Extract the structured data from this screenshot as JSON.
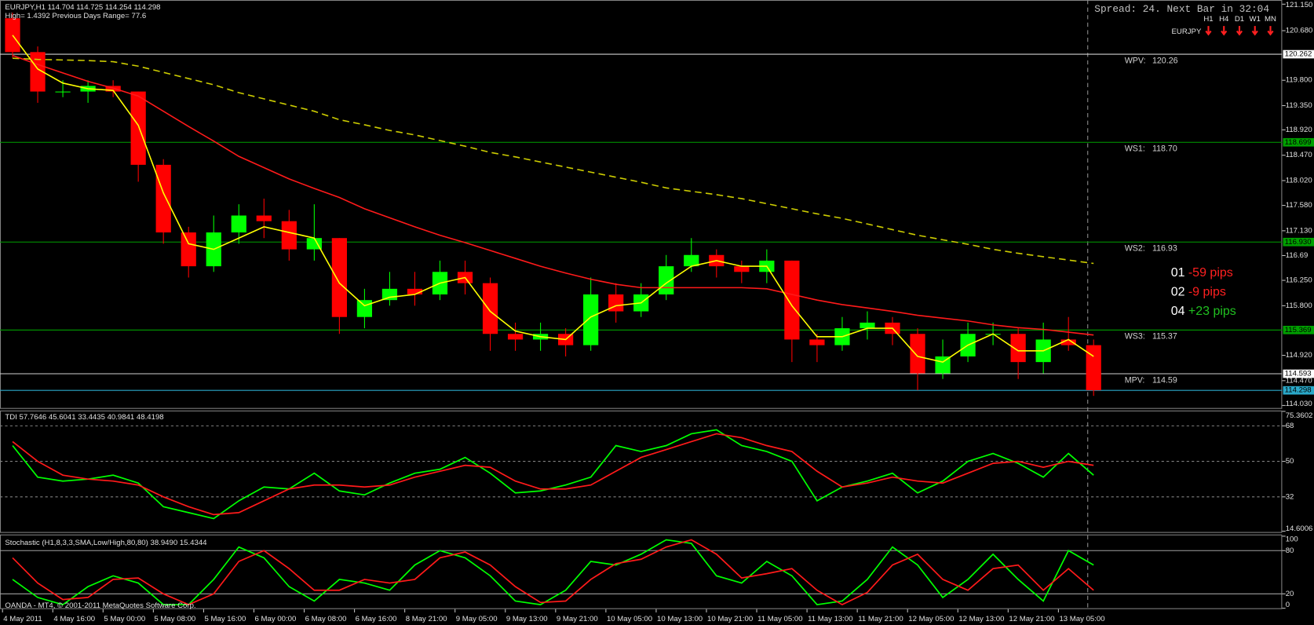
{
  "header": {
    "symbol_line": "EURJPY,H1  114.704 114.725 114.254 114.298",
    "info_line": "High= 1.4392   Previous Days Range= 77.6",
    "spread": "Spread: 24. Next Bar in 32:04",
    "timeframes": [
      "H1",
      "H4",
      "D1",
      "W1",
      "MN"
    ],
    "pair": "EURJPY"
  },
  "main": {
    "ylim": [
      113.985,
      121.224
    ],
    "yticks": [
      {
        "value": 121.15,
        "label": "121.150"
      },
      {
        "value": 120.68,
        "label": "120.680"
      },
      {
        "value": 119.8,
        "label": "119.800"
      },
      {
        "value": 119.35,
        "label": "119.350"
      },
      {
        "value": 118.92,
        "label": "118.920"
      },
      {
        "value": 118.47,
        "label": "118.470"
      },
      {
        "value": 118.02,
        "label": "118.020"
      },
      {
        "value": 117.58,
        "label": "117.580"
      },
      {
        "value": 117.13,
        "label": "117.130"
      },
      116.69,
      {
        "value": 116.25,
        "label": "116.250"
      },
      {
        "value": 115.8,
        "label": "115.800"
      },
      {
        "value": 114.92,
        "label": "114.920"
      },
      {
        "value": 114.47,
        "label": "114.470"
      },
      {
        "value": 114.03,
        "label": "114.030"
      }
    ],
    "markers": [
      {
        "value": 120.262,
        "color": "#d0d0d0"
      },
      {
        "value": 118.699,
        "color": "#00a000"
      },
      {
        "value": 116.93,
        "label": "116.930",
        "color": "#00a000"
      },
      {
        "value": 115.369,
        "color": "#00a000"
      },
      {
        "value": 114.593,
        "color": "#d0d0d0"
      },
      {
        "value": 114.298,
        "color": "#2aa8c8"
      }
    ],
    "pivots": [
      {
        "name": "WPV:",
        "value": 120.26
      },
      {
        "name": "WS1:",
        "value": {
          "value": 118.7,
          "label": "118.70"
        }
      },
      {
        "name": "WS2:",
        "value": 116.93
      },
      {
        "name": "WS3:",
        "value": 115.37
      },
      {
        "name": "MPV:",
        "value": 114.59
      }
    ],
    "up_color": "#00ff00",
    "down_color": "#ff0000",
    "candles": [
      [
        120.9,
        121.0,
        120.2,
        120.3
      ],
      [
        120.3,
        120.4,
        119.4,
        119.6
      ],
      [
        119.6,
        119.8,
        119.5,
        119.6
      ],
      [
        119.6,
        119.8,
        119.4,
        119.7
      ],
      [
        119.7,
        119.8,
        119.5,
        119.6
      ],
      [
        119.6,
        119.6,
        118.0,
        118.3
      ],
      [
        118.3,
        118.4,
        116.9,
        117.1
      ],
      [
        117.1,
        117.2,
        116.3,
        116.5
      ],
      [
        116.5,
        117.4,
        116.4,
        117.1
      ],
      [
        117.1,
        117.6,
        116.9,
        117.4
      ],
      [
        117.4,
        117.7,
        117.0,
        117.3
      ],
      [
        117.3,
        117.5,
        116.6,
        116.8
      ],
      [
        116.8,
        117.6,
        116.6,
        117.0
      ],
      [
        117.0,
        117.0,
        115.3,
        115.6
      ],
      [
        115.6,
        116.1,
        115.4,
        115.9
      ],
      [
        115.9,
        116.4,
        115.8,
        116.1
      ],
      [
        116.1,
        116.4,
        115.8,
        116.0
      ],
      [
        116.0,
        116.6,
        115.9,
        116.4
      ],
      [
        116.4,
        116.6,
        116.0,
        116.2
      ],
      [
        116.2,
        116.3,
        115.0,
        115.3
      ],
      [
        115.3,
        115.5,
        115.0,
        115.2
      ],
      [
        115.2,
        115.5,
        115.0,
        115.3
      ],
      [
        115.3,
        115.4,
        114.9,
        115.1
      ],
      [
        115.1,
        116.3,
        115.0,
        116.0
      ],
      [
        116.0,
        116.2,
        115.5,
        115.7
      ],
      [
        115.7,
        116.2,
        115.6,
        116.0
      ],
      [
        116.0,
        116.7,
        115.9,
        116.5
      ],
      [
        116.5,
        117.0,
        116.4,
        116.7
      ],
      [
        116.7,
        116.8,
        116.3,
        116.5
      ],
      [
        116.5,
        116.6,
        116.2,
        116.4
      ],
      [
        116.4,
        116.8,
        116.2,
        116.6
      ],
      [
        116.6,
        116.6,
        114.8,
        115.2
      ],
      [
        115.2,
        115.3,
        114.8,
        115.1
      ],
      [
        115.1,
        115.6,
        115.0,
        115.4
      ],
      [
        115.4,
        115.7,
        115.2,
        115.5
      ],
      [
        115.5,
        115.6,
        115.1,
        115.3
      ],
      [
        115.3,
        115.4,
        114.3,
        114.6
      ],
      [
        114.6,
        115.2,
        114.5,
        114.9
      ],
      [
        114.9,
        115.5,
        114.8,
        115.3
      ],
      [
        115.3,
        115.5,
        115.1,
        115.3
      ],
      [
        115.3,
        115.4,
        114.5,
        114.8
      ],
      [
        114.8,
        115.5,
        114.6,
        115.2
      ],
      [
        115.2,
        115.6,
        115.0,
        115.1
      ],
      [
        115.1,
        115.2,
        114.2,
        114.3
      ]
    ],
    "series": [
      {
        "color": "#cccc00",
        "dashed": true,
        "values": [
          120.19,
          120.17,
          120.16,
          120.15,
          120.13,
          120.05,
          119.94,
          119.83,
          119.72,
          119.58,
          119.47,
          119.36,
          119.25,
          119.1,
          119.01,
          118.91,
          118.83,
          118.73,
          118.63,
          118.52,
          118.44,
          118.35,
          118.26,
          118.17,
          118.08,
          117.99,
          117.89,
          117.83,
          117.77,
          117.7,
          117.61,
          117.52,
          117.43,
          117.35,
          117.25,
          117.15,
          117.05,
          116.97,
          116.89,
          116.8,
          116.73,
          116.67,
          116.61,
          116.55
        ]
      },
      {
        "color": "#ff1a1a",
        "dashed": false,
        "values": [
          120.24,
          120.08,
          119.93,
          119.78,
          119.66,
          119.52,
          119.25,
          118.98,
          118.72,
          118.45,
          118.25,
          118.05,
          117.88,
          117.72,
          117.52,
          117.36,
          117.2,
          117.05,
          116.92,
          116.78,
          116.64,
          116.5,
          116.38,
          116.27,
          116.18,
          116.12,
          116.12,
          116.12,
          116.12,
          116.12,
          116.1,
          116.0,
          115.9,
          115.82,
          115.76,
          115.7,
          115.63,
          115.58,
          115.53,
          115.46,
          115.41,
          115.38,
          115.33,
          115.28
        ]
      },
      {
        "color": "#ffff00",
        "dashed": false,
        "values": [
          120.6,
          120.0,
          119.75,
          119.65,
          119.62,
          119.0,
          117.8,
          116.9,
          116.8,
          117.0,
          117.2,
          117.1,
          117.0,
          116.2,
          115.8,
          115.95,
          116.0,
          116.2,
          116.3,
          115.7,
          115.35,
          115.25,
          115.2,
          115.6,
          115.8,
          115.85,
          116.2,
          116.5,
          116.6,
          116.5,
          116.5,
          115.8,
          115.25,
          115.25,
          115.4,
          115.4,
          114.9,
          114.8,
          115.1,
          115.3,
          115.0,
          115.0,
          115.2,
          114.9
        ]
      }
    ]
  },
  "signals": [
    {
      "id": "01",
      "text": "-59 pips",
      "color": "#ff2020"
    },
    {
      "id": "02",
      "text": "-9 pips",
      "color": "#ff2020"
    },
    {
      "id": "04",
      "text": "+23 pips",
      "color": "#20c020"
    }
  ],
  "tdi": {
    "title": "TDI 57.7646 45.6041 33.4435 40.9841 48.4198",
    "ylim": [
      14.6006,
      75.3602
    ],
    "yticks": [
      75.3602,
      68,
      50,
      32,
      14.6006
    ],
    "series": [
      {
        "color": "#00ff00",
        "values": [
          58,
          42,
          40,
          41,
          43,
          39,
          27,
          24,
          21,
          30,
          37,
          36,
          44,
          35,
          33,
          39,
          44,
          46,
          52,
          44,
          34,
          35,
          38,
          42,
          58,
          55,
          58,
          64,
          66,
          58,
          55,
          50,
          30,
          37,
          40,
          44,
          34,
          40,
          50,
          54,
          49,
          42,
          54,
          43
        ]
      },
      {
        "color": "#ff1a1a",
        "values": [
          60,
          50,
          43,
          41,
          40,
          38,
          32,
          27,
          23,
          24,
          30,
          36,
          38,
          38,
          37,
          38,
          42,
          45,
          48,
          47,
          40,
          36,
          36,
          38,
          45,
          52,
          56,
          60,
          64,
          62,
          58,
          55,
          45,
          37,
          39,
          42,
          40,
          39,
          44,
          49,
          50,
          47,
          50,
          48
        ]
      }
    ]
  },
  "stochastic": {
    "title": "Stochastic (H1,8,3,3,SMA,Low/High,80,80) 38.9490 15.4344",
    "ylim": [
      0,
      100
    ],
    "yticks": [
      100,
      80,
      20,
      0
    ],
    "series": [
      {
        "color": "#00ff00",
        "values": [
          40,
          15,
          5,
          30,
          45,
          35,
          5,
          5,
          40,
          85,
          70,
          30,
          10,
          40,
          35,
          25,
          60,
          80,
          70,
          45,
          10,
          5,
          25,
          65,
          60,
          75,
          95,
          90,
          45,
          35,
          65,
          45,
          5,
          10,
          40,
          85,
          60,
          15,
          40,
          75,
          40,
          10,
          80,
          60
        ]
      },
      {
        "color": "#ff1a1a",
        "values": [
          70,
          35,
          12,
          15,
          40,
          42,
          20,
          5,
          20,
          65,
          80,
          55,
          25,
          25,
          40,
          35,
          40,
          70,
          78,
          60,
          30,
          8,
          10,
          40,
          62,
          68,
          85,
          95,
          75,
          42,
          48,
          55,
          25,
          5,
          22,
          60,
          75,
          40,
          25,
          55,
          60,
          25,
          55,
          25
        ]
      }
    ]
  },
  "time_axis": [
    "4 May 2011",
    "4 May 16:00",
    "5 May 00:00",
    "5 May 08:00",
    "5 May 16:00",
    "6 May 00:00",
    "6 May 08:00",
    "6 May 16:00",
    "8 May 21:00",
    "9 May 05:00",
    "9 May 13:00",
    "9 May 21:00",
    "10 May 05:00",
    "10 May 13:00",
    "10 May 21:00",
    "11 May 05:00",
    "11 May 13:00",
    "11 May 21:00",
    "12 May 05:00",
    "12 May 13:00",
    "12 May 21:00",
    "13 May 05:00"
  ],
  "footer": "OANDA - MT4, © 2001-2011 MetaQuotes Software Corp."
}
